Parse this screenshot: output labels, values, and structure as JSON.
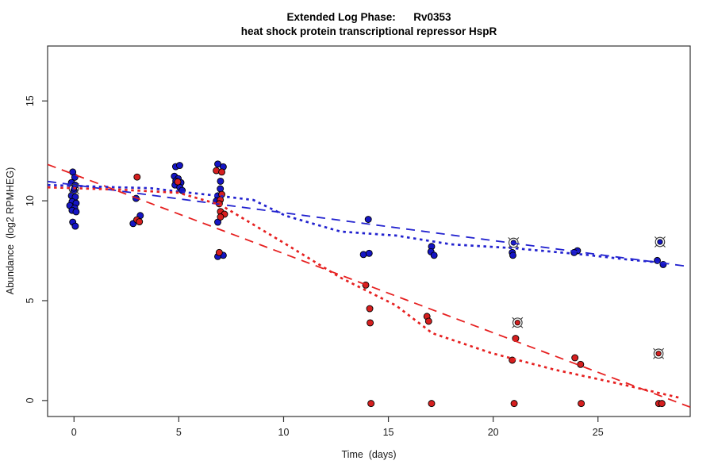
{
  "chart_data": {
    "type": "scatter",
    "title_line1": "Extended Log Phase:      Rv0353",
    "title_line2": "heat shock protein transcriptional repressor HspR",
    "xlabel": "Time  (days)",
    "ylabel": "Abundance  (log2 RPMHEG)",
    "xlim": [
      -1.26,
      29.4
    ],
    "ylim": [
      -0.8,
      17.75
    ],
    "xticks": [
      0,
      5,
      10,
      15,
      20,
      25
    ],
    "yticks": [
      0,
      5,
      10,
      15
    ],
    "grid": false,
    "legend": "none",
    "colors": {
      "blue_point": "#1515c4",
      "red_point": "#d61f1f",
      "blue_line": "#2222cf",
      "red_line": "#e62020",
      "marker_ring": "#3a3a3a",
      "axis": "#333333"
    },
    "series": [
      {
        "name": "blue-points",
        "color": "#1515c4",
        "points": [
          [
            -0.06,
            11.44
          ],
          [
            0.04,
            11.18
          ],
          [
            -0.12,
            10.91
          ],
          [
            0.06,
            10.78
          ],
          [
            0.0,
            10.52
          ],
          [
            -0.12,
            10.25
          ],
          [
            0.06,
            10.19
          ],
          [
            -0.09,
            9.96
          ],
          [
            0.1,
            9.88
          ],
          [
            -0.2,
            9.76
          ],
          [
            0.03,
            9.64
          ],
          [
            -0.09,
            9.52
          ],
          [
            0.1,
            9.45
          ],
          [
            -0.06,
            8.93
          ],
          [
            0.06,
            8.73
          ],
          [
            2.96,
            10.12
          ],
          [
            3.16,
            9.26
          ],
          [
            2.82,
            8.86
          ],
          [
            4.85,
            11.71
          ],
          [
            5.04,
            11.77
          ],
          [
            4.79,
            11.23
          ],
          [
            4.97,
            11.11
          ],
          [
            4.86,
            10.99
          ],
          [
            5.1,
            10.91
          ],
          [
            4.82,
            10.79
          ],
          [
            5.05,
            10.67
          ],
          [
            5.16,
            10.52
          ],
          [
            6.86,
            11.84
          ],
          [
            7.12,
            11.7
          ],
          [
            6.99,
            10.98
          ],
          [
            6.98,
            10.6
          ],
          [
            6.86,
            10.25
          ],
          [
            6.79,
            9.99
          ],
          [
            6.86,
            8.93
          ],
          [
            7.12,
            7.27
          ],
          [
            6.86,
            7.21
          ],
          [
            14.04,
            9.07
          ],
          [
            13.81,
            7.31
          ],
          [
            14.08,
            7.37
          ],
          [
            17.06,
            7.71
          ],
          [
            17.03,
            7.45
          ],
          [
            17.18,
            7.27
          ],
          [
            20.91,
            7.41
          ],
          [
            20.94,
            7.27
          ],
          [
            24.02,
            7.5
          ],
          [
            23.86,
            7.41
          ],
          [
            27.83,
            7.01
          ],
          [
            28.11,
            6.81
          ]
        ]
      },
      {
        "name": "red-points",
        "color": "#d61f1f",
        "points": [
          [
            3.01,
            11.19
          ],
          [
            3.0,
            9.05
          ],
          [
            3.12,
            8.95
          ],
          [
            4.95,
            10.95
          ],
          [
            6.79,
            11.51
          ],
          [
            7.05,
            11.44
          ],
          [
            7.05,
            10.32
          ],
          [
            6.98,
            10.05
          ],
          [
            6.93,
            9.85
          ],
          [
            6.99,
            9.46
          ],
          [
            7.18,
            9.33
          ],
          [
            6.99,
            9.19
          ],
          [
            6.93,
            7.41
          ],
          [
            13.92,
            5.78
          ],
          [
            14.11,
            4.6
          ],
          [
            14.13,
            3.89
          ],
          [
            14.17,
            -0.15
          ],
          [
            16.84,
            4.21
          ],
          [
            16.92,
            3.97
          ],
          [
            17.06,
            -0.15
          ],
          [
            21.07,
            3.11
          ],
          [
            20.91,
            2.02
          ],
          [
            21.0,
            -0.15
          ],
          [
            23.9,
            2.14
          ],
          [
            24.17,
            1.81
          ],
          [
            24.2,
            -0.15
          ],
          [
            27.9,
            -0.15
          ],
          [
            28.05,
            -0.15
          ]
        ]
      },
      {
        "name": "blue-circled-points",
        "color": "#1515c4",
        "points": [
          [
            -0.01,
            10.6
          ],
          [
            20.97,
            7.9
          ],
          [
            27.96,
            7.94
          ]
        ]
      },
      {
        "name": "red-circled-points",
        "color": "#d61f1f",
        "points": [
          [
            21.16,
            3.9
          ],
          [
            27.89,
            2.35
          ]
        ]
      }
    ],
    "lines": [
      {
        "name": "blue-dashed-fit",
        "color": "#2222cf",
        "style": "dashed",
        "points": [
          [
            -1.26,
            10.97
          ],
          [
            29.4,
            6.7
          ]
        ]
      },
      {
        "name": "red-dashed-fit",
        "color": "#e62020",
        "style": "dashed",
        "points": [
          [
            -1.26,
            11.82
          ],
          [
            29.4,
            -0.33
          ]
        ]
      },
      {
        "name": "blue-dotted-fit",
        "color": "#2222cf",
        "style": "dotted",
        "points": [
          [
            -1.26,
            10.79
          ],
          [
            2.0,
            10.68
          ],
          [
            3.65,
            10.63
          ],
          [
            5.0,
            10.46
          ],
          [
            6.98,
            10.24
          ],
          [
            8.56,
            10.04
          ],
          [
            10.1,
            9.25
          ],
          [
            12.72,
            8.46
          ],
          [
            15.36,
            8.26
          ],
          [
            18.0,
            7.82
          ],
          [
            20.95,
            7.63
          ],
          [
            24.4,
            7.3
          ],
          [
            26.5,
            7.05
          ],
          [
            28.4,
            6.87
          ]
        ]
      },
      {
        "name": "red-dotted-fit",
        "color": "#e62020",
        "style": "dotted",
        "points": [
          [
            -1.26,
            10.67
          ],
          [
            2.14,
            10.56
          ],
          [
            4.98,
            10.4
          ],
          [
            6.98,
            9.8
          ],
          [
            10.0,
            7.9
          ],
          [
            12.72,
            6.15
          ],
          [
            15.36,
            4.76
          ],
          [
            17.1,
            3.37
          ],
          [
            19.9,
            2.38
          ],
          [
            22.9,
            1.55
          ],
          [
            25.9,
            0.87
          ],
          [
            28.96,
            0.12
          ]
        ]
      }
    ]
  }
}
